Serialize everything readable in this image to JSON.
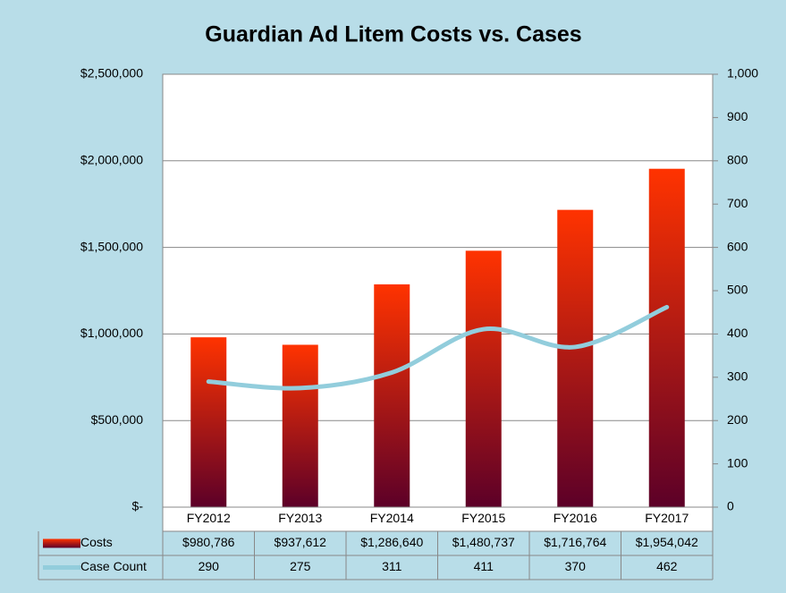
{
  "chart_data": {
    "type": "bar_line_table",
    "title": "Guardian Ad Litem Costs vs. Cases",
    "categories": [
      "FY2012",
      "FY2013",
      "FY2014",
      "FY2015",
      "FY2016",
      "FY2017"
    ],
    "series": [
      {
        "name": "Costs",
        "type": "bar",
        "color": "#ff3300",
        "gradient": [
          "#ff3300",
          "#5c0028"
        ],
        "values": [
          980786,
          937612,
          1286640,
          1480737,
          1716764,
          1954042
        ],
        "value_labels": [
          "$980,786",
          "$937,612",
          "$1,286,640",
          "$1,480,737",
          "$1,716,764",
          "$1,954,042"
        ]
      },
      {
        "name": "Case Count",
        "type": "line",
        "axis": "y2",
        "color": "#92cddc",
        "smooth": true,
        "values": [
          290,
          275,
          311,
          411,
          370,
          462
        ]
      }
    ],
    "ylim": [
      0,
      2500000
    ],
    "yticks": [
      {
        "value": 0,
        "label": "$-"
      },
      {
        "value": 500000,
        "label": "$500,000"
      },
      {
        "value": 1000000,
        "label": "$1,000,000"
      },
      {
        "value": 1500000,
        "label": "$1,500,000"
      },
      {
        "value": 2000000,
        "label": "$2,000,000"
      },
      {
        "value": 2500000,
        "label": "$2,500,000"
      }
    ],
    "y2lim": [
      0,
      1000
    ],
    "y2ticks": [
      0,
      100,
      200,
      300,
      400,
      500,
      600,
      700,
      800,
      900,
      {
        "value": 1000,
        "label": "1,000"
      }
    ],
    "grid": true
  }
}
